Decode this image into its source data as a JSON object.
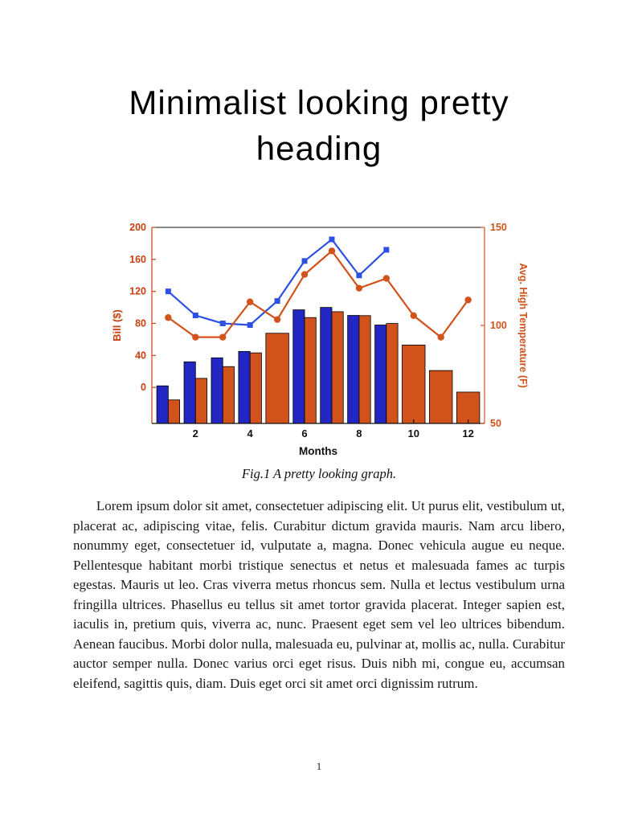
{
  "page": {
    "title": "Minimalist looking pretty heading",
    "figure_caption": "Fig.1 A pretty looking graph.",
    "body_paragraph": "Lorem ipsum dolor sit amet, consectetuer adipiscing elit. Ut purus elit, vestibulum ut, placerat ac, adipiscing vitae, felis. Curabitur dictum gravida mauris. Nam arcu libero, nonummy eget, consectetuer id, vulputate a, magna. Donec vehicula augue eu neque. Pellentesque habitant morbi tristique senectus et netus et malesuada fames ac turpis egestas. Mauris ut leo. Cras viverra metus rhoncus sem. Nulla et lectus vestibulum urna fringilla ultrices. Phasellus eu tellus sit amet tortor gravida placerat. Integer sapien est, iaculis in, pretium quis, viverra ac, nunc. Praesent eget sem vel leo ultrices bibendum. Aenean faucibus. Morbi dolor nulla, malesuada eu, pulvinar at, mollis ac, nulla. Curabitur auctor semper nulla. Donec varius orci eget risus. Duis nibh mi, congue eu, accumsan eleifend, sagittis quis, diam. Duis eget orci sit amet orci dignissim rutrum.",
    "page_number": "1"
  },
  "chart_data": {
    "type": "bar",
    "subtype": "combo-dual-axis",
    "title": "",
    "xlabel": "Months",
    "ylabel_left": "Bill ($)",
    "ylabel_right": "Avg. High Temperature (F)",
    "months": [
      1,
      2,
      3,
      4,
      5,
      6,
      7,
      8,
      9,
      10,
      11,
      12
    ],
    "x_ticks": [
      2,
      4,
      6,
      8,
      10,
      12
    ],
    "xlim": [
      0.4,
      12.6
    ],
    "left_ticks": [
      0,
      40,
      80,
      120,
      160,
      200
    ],
    "left_lim": [
      -45,
      200
    ],
    "right_ticks": [
      50,
      100,
      150
    ],
    "right_lim": [
      50,
      150
    ],
    "grid": false,
    "legend": "none",
    "colors": {
      "left_axis": "#C8400F",
      "right_axis": "#D2521C",
      "bar_blue": "#2227C3",
      "bar_orange": "#D2521C",
      "line_blue": "#2B50E3",
      "line_orange": "#D2521C",
      "axis_black": "#111111"
    },
    "series": [
      {
        "name": "bill-bars",
        "type": "bar",
        "axis": "left",
        "marker": "none",
        "color": "#2227C3",
        "values": [
          2,
          32,
          37,
          45,
          null,
          97,
          100,
          90,
          78,
          null,
          null,
          null
        ]
      },
      {
        "name": "temperature-bars",
        "type": "bar",
        "axis": "right",
        "marker": "none",
        "color": "#D2521C",
        "values": [
          62,
          73,
          79,
          86,
          96,
          104,
          107,
          105,
          101,
          90,
          77,
          66
        ]
      },
      {
        "name": "bill-line",
        "type": "line",
        "axis": "left",
        "marker": "square",
        "color": "#2B50E3",
        "values": [
          120,
          90,
          80,
          78,
          108,
          158,
          185,
          140,
          172,
          null,
          null,
          null
        ]
      },
      {
        "name": "temperature-line",
        "type": "line",
        "axis": "right",
        "marker": "circle",
        "color": "#D2521C",
        "values": [
          104,
          94,
          94,
          112,
          103,
          126,
          138,
          119,
          124,
          105,
          94,
          113
        ]
      }
    ]
  }
}
